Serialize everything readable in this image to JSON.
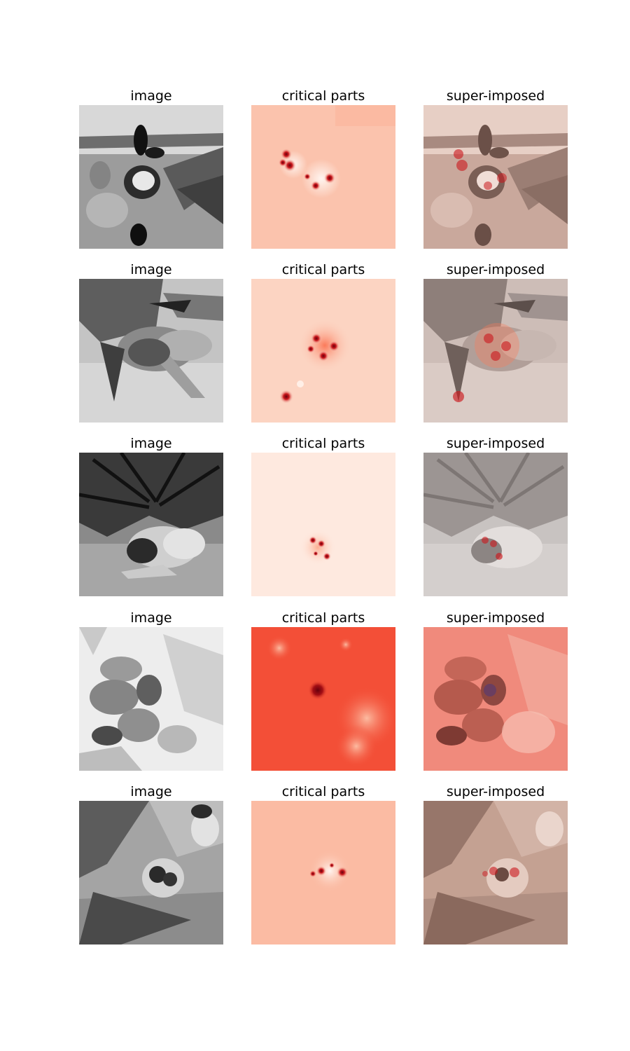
{
  "rows": [
    {
      "image": {
        "title": "image"
      },
      "critical": {
        "title": "critical parts"
      },
      "overlay": {
        "title": "super-imposed"
      }
    },
    {
      "image": {
        "title": "image"
      },
      "critical": {
        "title": "critical parts"
      },
      "overlay": {
        "title": "super-imposed"
      }
    },
    {
      "image": {
        "title": "image"
      },
      "critical": {
        "title": "critical parts"
      },
      "overlay": {
        "title": "super-imposed"
      }
    },
    {
      "image": {
        "title": "image"
      },
      "critical": {
        "title": "critical parts"
      },
      "overlay": {
        "title": "super-imposed"
      }
    },
    {
      "image": {
        "title": "image"
      },
      "critical": {
        "title": "critical parts"
      },
      "overlay": {
        "title": "super-imposed"
      }
    }
  ],
  "colors": {
    "heat_background": [
      "#fbc3ad",
      "#fcd4c2",
      "#fee9df",
      "#f34f37",
      "#fbbba3"
    ],
    "heat_hotspot": "#67000d",
    "overlay_tint": [
      "#c9a89c",
      "#cdbdb7",
      "#c8c3c1",
      "#e0796d",
      "#c4a192"
    ]
  }
}
